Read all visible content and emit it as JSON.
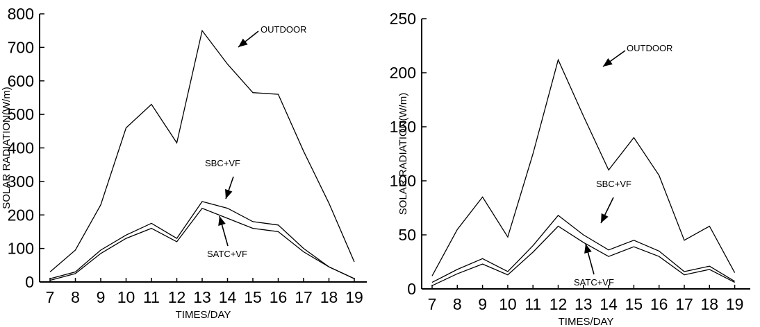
{
  "chart_data": [
    {
      "type": "line",
      "xlabel": "TIMES/DAY",
      "ylabel": "SOLAR RADIATION(W/m)",
      "x": [
        7,
        8,
        9,
        10,
        11,
        12,
        13,
        14,
        15,
        16,
        17,
        18,
        19
      ],
      "x_tick_labels": [
        "7",
        "8",
        "9",
        "10",
        "11",
        "12",
        "13",
        "14",
        "15",
        "16",
        "17",
        "18",
        "19"
      ],
      "ylim": [
        0,
        800
      ],
      "y_ticks": [
        0,
        100,
        200,
        300,
        400,
        500,
        600,
        700,
        800
      ],
      "series": [
        {
          "name": "OUTDOOR",
          "values": [
            30,
            95,
            230,
            460,
            530,
            415,
            750,
            650,
            565,
            560,
            390,
            235,
            60
          ]
        },
        {
          "name": "SBC+VF",
          "values": [
            10,
            30,
            95,
            140,
            175,
            130,
            240,
            220,
            180,
            170,
            100,
            45,
            10
          ]
        },
        {
          "name": "SATC+VF",
          "values": [
            5,
            25,
            85,
            130,
            160,
            120,
            220,
            190,
            160,
            150,
            90,
            45,
            10
          ]
        }
      ],
      "annotations": [
        "OUTDOOR",
        "SBC+VF",
        "SATC+VF"
      ]
    },
    {
      "type": "line",
      "xlabel": "TIMES/DAY",
      "ylabel": "SOLAR RADIATION(W/m)",
      "x": [
        7,
        8,
        9,
        10,
        11,
        12,
        13,
        14,
        15,
        16,
        17,
        18,
        19
      ],
      "x_tick_labels": [
        "7",
        "8",
        "9",
        "10",
        "11",
        "12",
        "13",
        "14",
        "15",
        "16",
        "17",
        "18",
        "19"
      ],
      "ylim": [
        0,
        250
      ],
      "y_ticks": [
        0,
        50,
        100,
        150,
        200,
        250
      ],
      "series": [
        {
          "name": "OUTDOOR",
          "values": [
            12,
            55,
            85,
            48,
            125,
            212,
            160,
            110,
            140,
            105,
            45,
            58,
            15
          ]
        },
        {
          "name": "SBC+VF",
          "values": [
            6,
            18,
            28,
            16,
            40,
            68,
            50,
            36,
            45,
            35,
            16,
            21,
            7
          ]
        },
        {
          "name": "SATC+VF",
          "values": [
            3,
            14,
            23,
            13,
            34,
            58,
            43,
            30,
            39,
            30,
            13,
            18,
            6
          ]
        }
      ],
      "annotations": [
        "OUTDOOR",
        "SBC+VF",
        "SATC+VF"
      ]
    }
  ]
}
